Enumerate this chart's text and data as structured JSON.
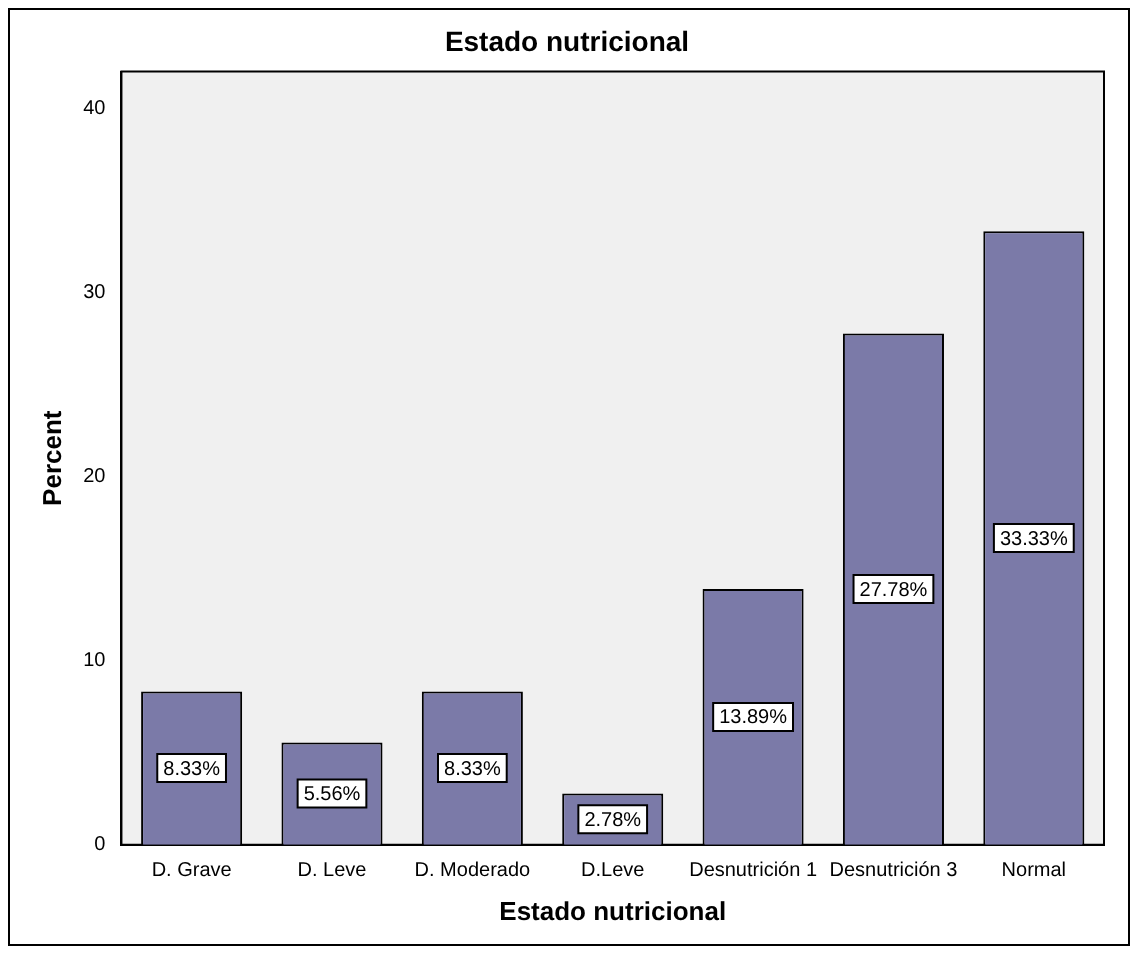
{
  "chart_data": {
    "type": "bar",
    "title": "Estado nutricional",
    "xlabel": "Estado nutricional",
    "ylabel": "Percent",
    "categories": [
      "D. Grave",
      "D. Leve",
      "D. Moderado",
      "D.Leve",
      "Desnutrición 1",
      "Desnutrición 3",
      "Normal"
    ],
    "values": [
      8.33,
      5.56,
      8.33,
      2.78,
      13.89,
      27.78,
      33.33
    ],
    "value_labels": [
      "8.33%",
      "5.56%",
      "8.33%",
      "2.78%",
      "13.89%",
      "27.78%",
      "33.33%"
    ],
    "color": "#7b7aa8",
    "ylim": [
      0,
      42
    ],
    "yticks": [
      0,
      10,
      20,
      30,
      40
    ],
    "grid": false,
    "legend": false
  }
}
